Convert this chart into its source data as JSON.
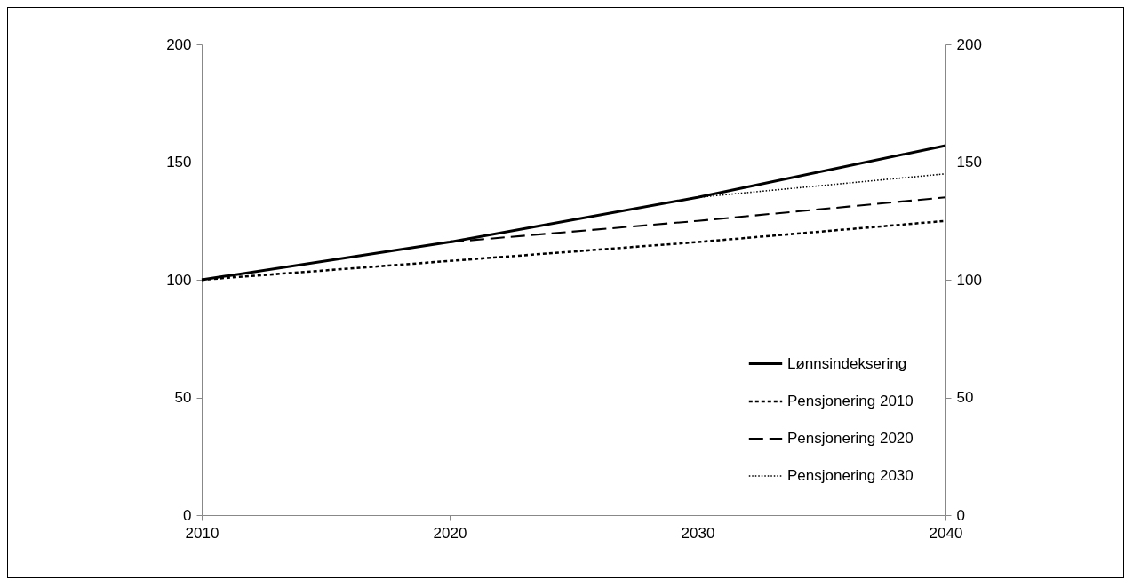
{
  "chart_data": {
    "type": "line",
    "xlim": [
      2010,
      2040
    ],
    "xticks": [
      2010,
      2020,
      2030,
      2040
    ],
    "ylim": [
      0,
      200
    ],
    "yticks": [
      0,
      50,
      100,
      150,
      200
    ],
    "y2lim": [
      0,
      200
    ],
    "y2ticks": [
      0,
      50,
      100,
      150,
      200
    ],
    "grid": false,
    "legend": "bottom right",
    "marker": "none",
    "series": [
      {
        "name": "Lønnsindeksering",
        "color": "#000000",
        "line_style": "solid",
        "x": [
          2010,
          2020,
          2030,
          2040
        ],
        "values": [
          100,
          116,
          135,
          157
        ]
      },
      {
        "name": "Pensjonering 2010",
        "color": "#000000",
        "line_style": "dashed",
        "x": [
          2010,
          2020,
          2030,
          2040
        ],
        "values": [
          100,
          108,
          116,
          125
        ]
      },
      {
        "name": "Pensjonering 2020",
        "color": "#000000",
        "line_style": "dashed",
        "x": [
          2020,
          2030,
          2040
        ],
        "values": [
          116,
          125,
          135
        ]
      },
      {
        "name": "Pensjonering 2030",
        "color": "#000000",
        "line_style": "dotted",
        "x": [
          2030,
          2040
        ],
        "values": [
          135,
          145
        ]
      }
    ]
  }
}
